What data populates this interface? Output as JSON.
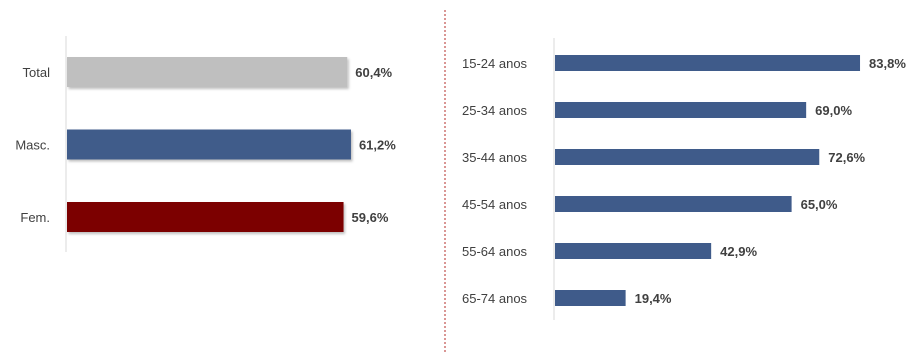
{
  "chart_data": [
    {
      "type": "bar",
      "orientation": "horizontal",
      "categories": [
        "Total",
        "Masc.",
        "Fem."
      ],
      "values": [
        60.4,
        61.2,
        59.6
      ],
      "value_labels": [
        "60,4%",
        "61,2%",
        "59,6%"
      ],
      "colors": [
        "#bfbfbf",
        "#3f5b8a",
        "#7b0000"
      ],
      "xlim": [
        0,
        100
      ],
      "grid": false,
      "legend": "none"
    },
    {
      "type": "bar",
      "orientation": "horizontal",
      "categories": [
        "15-24 anos",
        "25-34 anos",
        "35-44 anos",
        "45-54 anos",
        "55-64 anos",
        "65-74 anos"
      ],
      "values": [
        83.8,
        69.0,
        72.6,
        65.0,
        42.9,
        19.4
      ],
      "value_labels": [
        "83,8%",
        "69,0%",
        "72,6%",
        "65,0%",
        "42,9%",
        "19,4%"
      ],
      "colors": [
        "#3f5b8a"
      ],
      "xlim": [
        0,
        100
      ],
      "grid": false,
      "legend": "none"
    }
  ],
  "separator_color": "#c0504d"
}
